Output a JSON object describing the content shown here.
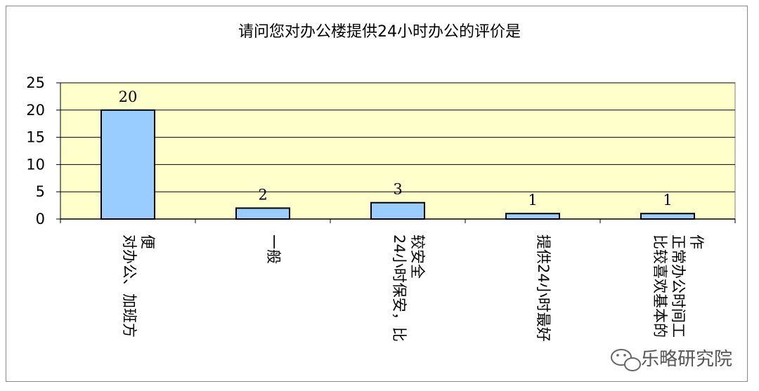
{
  "chart_data": {
    "type": "bar",
    "title": "请问您对办公楼提供24小时办公的评价是",
    "categories": [
      [
        "对办公、加班方",
        "便"
      ],
      [
        "一般"
      ],
      [
        "24小时保安，比",
        "较安全"
      ],
      [
        "提供24小时最好"
      ],
      [
        "比较喜欢基本的",
        "正常办公时间工",
        "作"
      ]
    ],
    "values": [
      20,
      2,
      3,
      1,
      1
    ],
    "data_labels": [
      "20",
      "2",
      "3",
      "1",
      "1"
    ],
    "ylim": [
      0,
      25
    ],
    "yticks": [
      "0",
      "5",
      "10",
      "15",
      "20",
      "25"
    ],
    "grid": true,
    "legend": "none",
    "colors": {
      "plot_bg": "#FFFFCC",
      "bar_fill": "#99CCFF",
      "bar_stroke": "#000000",
      "grid": "#000000"
    }
  },
  "watermark": {
    "text": "乐略研究院",
    "icon": "wechat-icon"
  }
}
